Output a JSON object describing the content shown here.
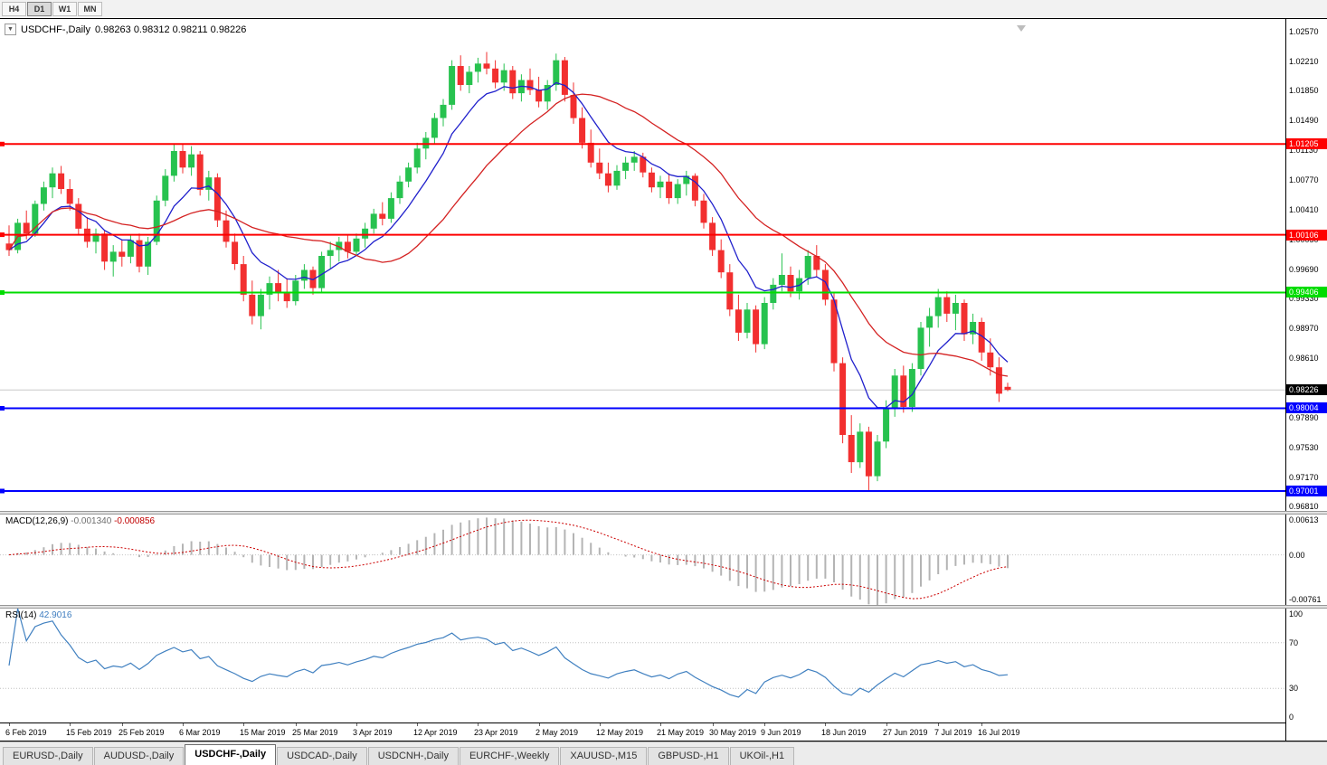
{
  "toolbar": {
    "timeframes": [
      {
        "label": "H4",
        "active": false
      },
      {
        "label": "D1",
        "active": true
      },
      {
        "label": "W1",
        "active": false
      },
      {
        "label": "MN",
        "active": false
      }
    ]
  },
  "chart": {
    "title": "USDCHF-,Daily",
    "ohlc": "0.98263 0.98312 0.98211 0.98226"
  },
  "chart_data": {
    "type": "candlestick",
    "symbol": "USDCHF",
    "period": "Daily",
    "y_range": {
      "min": 0.9676,
      "max": 1.0272
    },
    "y_axis_ticks": [
      "1.02570",
      "1.02210",
      "1.01850",
      "1.01490",
      "1.01130",
      "1.00770",
      "1.00410",
      "1.00050",
      "0.99690",
      "0.99330",
      "0.98970",
      "0.98610",
      "0.98250",
      "0.97890",
      "0.97530",
      "0.97170",
      "0.96810"
    ],
    "date_labels": [
      {
        "text": "6 Feb 2019",
        "index": 0
      },
      {
        "text": "15 Feb 2019",
        "index": 7
      },
      {
        "text": "25 Feb 2019",
        "index": 13
      },
      {
        "text": "6 Mar 2019",
        "index": 20
      },
      {
        "text": "15 Mar 2019",
        "index": 27
      },
      {
        "text": "25 Mar 2019",
        "index": 33
      },
      {
        "text": "3 Apr 2019",
        "index": 40
      },
      {
        "text": "12 Apr 2019",
        "index": 47
      },
      {
        "text": "23 Apr 2019",
        "index": 54
      },
      {
        "text": "2 May 2019",
        "index": 61
      },
      {
        "text": "12 May 2019",
        "index": 68
      },
      {
        "text": "21 May 2019",
        "index": 75
      },
      {
        "text": "30 May 2019",
        "index": 81
      },
      {
        "text": "9 Jun 2019",
        "index": 87
      },
      {
        "text": "18 Jun 2019",
        "index": 94
      },
      {
        "text": "27 Jun 2019",
        "index": 101
      },
      {
        "text": "7 Jul 2019",
        "index": 107
      },
      {
        "text": "16 Jul 2019",
        "index": 112
      }
    ],
    "hlines": [
      {
        "price": 1.01205,
        "label": "1.01205",
        "color": "#fe0000"
      },
      {
        "price": 1.00106,
        "label": "1.00106",
        "color": "#fe0000"
      },
      {
        "price": 0.99406,
        "label": "0.99406",
        "color": "#00dc00"
      },
      {
        "price": 0.98004,
        "label": "0.98004",
        "color": "#0000fe"
      },
      {
        "price": 0.97001,
        "label": "0.97001",
        "color": "#0000fe"
      }
    ],
    "current_price": {
      "price": 0.98226,
      "label": "0.98226",
      "color": "#000000"
    },
    "colors": {
      "up": "#27c24f",
      "down": "#f22f2f",
      "ma_fast": "#2020cc",
      "ma_slow": "#d42222",
      "macd_hist": "#b4b4b4",
      "macd_signal": "#cc0000",
      "rsi": "#4080c0"
    },
    "candles": [
      [
        1.0,
        1.0022,
        0.9985,
        0.9992
      ],
      [
        0.9992,
        1.003,
        0.9988,
        1.0025
      ],
      [
        1.0025,
        1.004,
        1.0005,
        1.0012
      ],
      [
        1.0012,
        1.0052,
        1.0008,
        1.0048
      ],
      [
        1.0048,
        1.0075,
        1.004,
        1.0068
      ],
      [
        1.0068,
        1.0092,
        1.0055,
        1.0085
      ],
      [
        1.0085,
        1.0094,
        1.006,
        1.0066
      ],
      [
        1.0066,
        1.0078,
        1.004,
        1.0048
      ],
      [
        1.0048,
        1.0055,
        1.001,
        1.0018
      ],
      [
        1.0018,
        1.0032,
        0.9995,
        1.0002
      ],
      [
        1.0002,
        1.0018,
        0.9988,
        1.0012
      ],
      [
        1.0012,
        1.0016,
        0.9968,
        0.9978
      ],
      [
        0.9978,
        0.9998,
        0.996,
        0.999
      ],
      [
        0.999,
        1.0005,
        0.9972,
        0.9984
      ],
      [
        0.9984,
        1.001,
        0.9976,
        1.0004
      ],
      [
        1.0004,
        1.0012,
        0.9965,
        0.9972
      ],
      [
        0.9972,
        1.0008,
        0.9962,
        1.0002
      ],
      [
        1.0002,
        1.0058,
        0.9998,
        1.0052
      ],
      [
        1.0052,
        1.009,
        1.0045,
        1.0082
      ],
      [
        1.0082,
        1.0121,
        1.0075,
        1.0112
      ],
      [
        1.0112,
        1.012,
        1.0085,
        1.0092
      ],
      [
        1.0092,
        1.0118,
        1.0082,
        1.0108
      ],
      [
        1.0108,
        1.0112,
        1.0058,
        1.0065
      ],
      [
        1.0065,
        1.0088,
        1.0052,
        1.008
      ],
      [
        1.008,
        1.0085,
        1.002,
        1.0028
      ],
      [
        1.0028,
        1.004,
        0.9995,
        1.0002
      ],
      [
        1.0002,
        1.0012,
        0.9968,
        0.9975
      ],
      [
        0.9975,
        0.9985,
        0.993,
        0.9938
      ],
      [
        0.9938,
        0.9955,
        0.9902,
        0.9912
      ],
      [
        0.9912,
        0.9945,
        0.9896,
        0.9938
      ],
      [
        0.9938,
        0.996,
        0.992,
        0.9952
      ],
      [
        0.9952,
        0.9968,
        0.993,
        0.994
      ],
      [
        0.994,
        0.9958,
        0.9922,
        0.993
      ],
      [
        0.993,
        0.9962,
        0.9925,
        0.9955
      ],
      [
        0.9955,
        0.9975,
        0.9945,
        0.9968
      ],
      [
        0.9968,
        0.9972,
        0.9938,
        0.9946
      ],
      [
        0.9946,
        0.999,
        0.994,
        0.9985
      ],
      [
        0.9985,
        1.0002,
        0.997,
        0.9992
      ],
      [
        0.9992,
        1.0008,
        0.9978,
        1.0002
      ],
      [
        1.0002,
        1.001,
        0.9982,
        0.999
      ],
      [
        0.999,
        1.0012,
        0.9985,
        1.0006
      ],
      [
        1.0006,
        1.0025,
        0.9995,
        1.0018
      ],
      [
        1.0018,
        1.0042,
        1.0012,
        1.0036
      ],
      [
        1.0036,
        1.005,
        1.0022,
        1.003
      ],
      [
        1.003,
        1.0062,
        1.0025,
        1.0055
      ],
      [
        1.0055,
        1.0082,
        1.0048,
        1.0075
      ],
      [
        1.0075,
        1.0098,
        1.0068,
        1.0092
      ],
      [
        1.0092,
        1.0122,
        1.0085,
        1.0115
      ],
      [
        1.0115,
        1.0135,
        1.0102,
        1.0128
      ],
      [
        1.0128,
        1.0158,
        1.012,
        1.0152
      ],
      [
        1.0152,
        1.0175,
        1.0142,
        1.0168
      ],
      [
        1.0168,
        1.0222,
        1.0162,
        1.0215
      ],
      [
        1.0215,
        1.0228,
        1.0185,
        1.0192
      ],
      [
        1.0192,
        1.0215,
        1.0182,
        1.0208
      ],
      [
        1.0208,
        1.0225,
        1.0195,
        1.0218
      ],
      [
        1.0218,
        1.0232,
        1.0205,
        1.0212
      ],
      [
        1.0212,
        1.0222,
        1.0188,
        1.0195
      ],
      [
        1.0195,
        1.0218,
        1.0185,
        1.021
      ],
      [
        1.021,
        1.0215,
        1.0175,
        1.0182
      ],
      [
        1.0182,
        1.0205,
        1.0172,
        1.0198
      ],
      [
        1.0198,
        1.0212,
        1.018,
        1.0186
      ],
      [
        1.0186,
        1.0202,
        1.0165,
        1.0172
      ],
      [
        1.0172,
        1.0198,
        1.0162,
        1.0192
      ],
      [
        1.0192,
        1.023,
        1.0185,
        1.0222
      ],
      [
        1.0222,
        1.0226,
        1.0172,
        1.018
      ],
      [
        1.018,
        1.0195,
        1.0145,
        1.0152
      ],
      [
        1.0152,
        1.0165,
        1.0115,
        1.0122
      ],
      [
        1.0122,
        1.0138,
        1.0092,
        1.0098
      ],
      [
        1.0098,
        1.0115,
        1.0078,
        1.0085
      ],
      [
        1.0085,
        1.0098,
        1.0062,
        1.007
      ],
      [
        1.007,
        1.0095,
        1.0065,
        1.0088
      ],
      [
        1.0088,
        1.0105,
        1.0078,
        1.0098
      ],
      [
        1.0098,
        1.0112,
        1.0088,
        1.0105
      ],
      [
        1.0105,
        1.011,
        1.008,
        1.0086
      ],
      [
        1.0086,
        1.0092,
        1.0062,
        1.0068
      ],
      [
        1.0068,
        1.0082,
        1.0055,
        1.0075
      ],
      [
        1.0075,
        1.0085,
        1.0048,
        1.0055
      ],
      [
        1.0055,
        1.0078,
        1.0048,
        1.0072
      ],
      [
        1.0072,
        1.0088,
        1.0058,
        1.0082
      ],
      [
        1.0082,
        1.0085,
        1.0045,
        1.0052
      ],
      [
        1.0052,
        1.006,
        1.0018,
        1.0025
      ],
      [
        1.0025,
        1.0032,
        0.9985,
        0.9992
      ],
      [
        0.9992,
        1.0005,
        0.9958,
        0.9965
      ],
      [
        0.9965,
        0.9975,
        0.9912,
        0.992
      ],
      [
        0.992,
        0.9938,
        0.9882,
        0.9892
      ],
      [
        0.9892,
        0.9928,
        0.9885,
        0.992
      ],
      [
        0.992,
        0.9925,
        0.9868,
        0.9878
      ],
      [
        0.9878,
        0.9935,
        0.9872,
        0.9928
      ],
      [
        0.9928,
        0.9958,
        0.992,
        0.995
      ],
      [
        0.995,
        0.9988,
        0.9942,
        0.9962
      ],
      [
        0.9962,
        0.9972,
        0.9935,
        0.9942
      ],
      [
        0.9942,
        0.9968,
        0.9932,
        0.9958
      ],
      [
        0.9958,
        0.9992,
        0.995,
        0.9985
      ],
      [
        0.9985,
        0.9998,
        0.996,
        0.9968
      ],
      [
        0.9968,
        0.9975,
        0.9925,
        0.9932
      ],
      [
        0.9932,
        0.994,
        0.9845,
        0.9855
      ],
      [
        0.9855,
        0.9862,
        0.9758,
        0.9768
      ],
      [
        0.9768,
        0.9792,
        0.9722,
        0.9735
      ],
      [
        0.9735,
        0.9782,
        0.9728,
        0.9772
      ],
      [
        0.9772,
        0.9778,
        0.97,
        0.9718
      ],
      [
        0.9718,
        0.9768,
        0.9712,
        0.976
      ],
      [
        0.976,
        0.981,
        0.9752,
        0.98
      ],
      [
        0.98,
        0.9848,
        0.979,
        0.984
      ],
      [
        0.984,
        0.9852,
        0.9795,
        0.9802
      ],
      [
        0.9802,
        0.9855,
        0.9796,
        0.9848
      ],
      [
        0.9848,
        0.9905,
        0.984,
        0.9898
      ],
      [
        0.9898,
        0.9922,
        0.9875,
        0.9912
      ],
      [
        0.9912,
        0.9945,
        0.9898,
        0.9935
      ],
      [
        0.9935,
        0.9942,
        0.9905,
        0.9915
      ],
      [
        0.9915,
        0.9938,
        0.9895,
        0.9928
      ],
      [
        0.9928,
        0.9932,
        0.9882,
        0.989
      ],
      [
        0.989,
        0.9915,
        0.9878,
        0.9905
      ],
      [
        0.9905,
        0.991,
        0.9858,
        0.9868
      ],
      [
        0.9868,
        0.9885,
        0.984,
        0.985
      ],
      [
        0.985,
        0.9862,
        0.9808,
        0.9818
      ],
      [
        0.98263,
        0.98312,
        0.98211,
        0.98226
      ]
    ]
  },
  "macd": {
    "name": "MACD(12,26,9)",
    "value_main": "-0.001340",
    "value_signal": "-0.000856",
    "range": {
      "min": -0.00761,
      "max": 0.00613
    },
    "axis": [
      {
        "label": "0.00613",
        "value": 0.00613
      },
      {
        "label": "0.00",
        "value": 0
      },
      {
        "label": "-0.00761",
        "value": -0.00761
      }
    ]
  },
  "rsi": {
    "name": "RSI(14)",
    "value": "42.9016",
    "levels": [
      70,
      30
    ],
    "range": {
      "min": 0,
      "max": 100
    },
    "axis": [
      {
        "label": "100",
        "value": 100
      },
      {
        "label": "70",
        "value": 70
      },
      {
        "label": "30",
        "value": 30
      },
      {
        "label": "0",
        "value": 0
      }
    ]
  },
  "tabs": [
    {
      "label": "EURUSD-,Daily",
      "active": false
    },
    {
      "label": "AUDUSD-,Daily",
      "active": false
    },
    {
      "label": "USDCHF-,Daily",
      "active": true
    },
    {
      "label": "USDCAD-,Daily",
      "active": false
    },
    {
      "label": "USDCNH-,Daily",
      "active": false
    },
    {
      "label": "EURCHF-,Weekly",
      "active": false
    },
    {
      "label": "XAUUSD-,M15",
      "active": false
    },
    {
      "label": "GBPUSD-,H1",
      "active": false
    },
    {
      "label": "UKOil-,H1",
      "active": false
    }
  ]
}
